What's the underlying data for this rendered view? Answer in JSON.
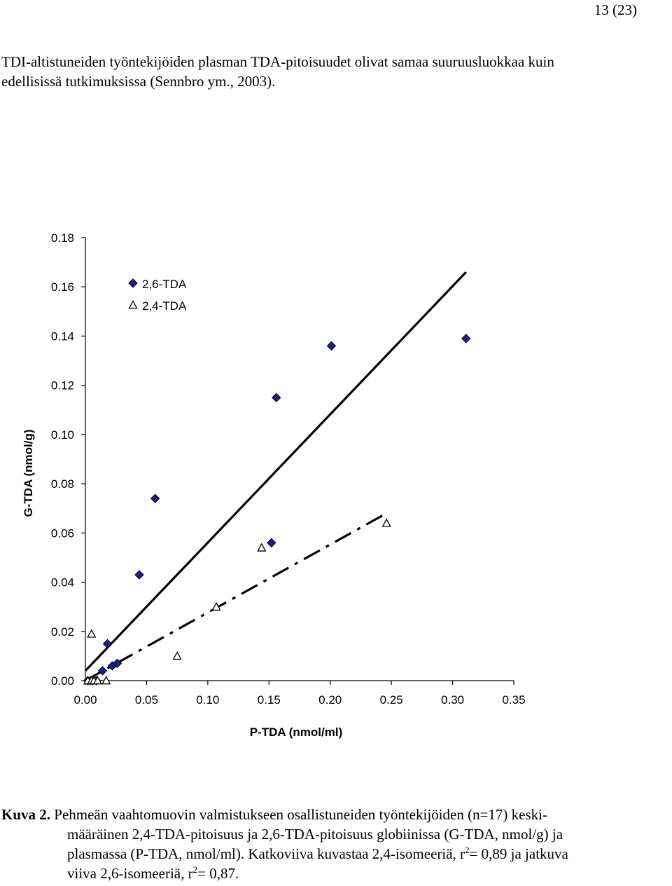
{
  "page": {
    "number": "13 (23)"
  },
  "intro": {
    "line1": "TDI-altistuneiden työntekijöiden plasman TDA-pitoisuudet olivat samaa suuruusluokkaa kuin",
    "line2": "edellisissä tutkimuksissa (Sennbro ym., 2003)."
  },
  "caption": {
    "label": "Kuva 2.",
    "line1": " Pehmeän vaahtomuovin valmistukseen osallistuneiden työntekijöiden (n=17) keski-",
    "line2": "määräinen 2,4-TDA-pitoisuus ja 2,6-TDA-pitoisuus globiinissa (G-TDA, nmol/g) ja",
    "line3a": "plasmassa (P-TDA, nmol/ml). Katkoviiva kuvastaa 2,4-isomeeriä, r",
    "sup1": "2",
    "line3b": "= 0,89 ja jatkuva",
    "line4a": "viiva 2,6-isomeeriä, r",
    "sup2": "2",
    "line4b": "= 0,87."
  },
  "chart_data": {
    "type": "scatter",
    "xlabel": "P-TDA (nmol/ml)",
    "ylabel": "G-TDA (nmol/g)",
    "xlim": [
      0,
      0.35
    ],
    "ylim": [
      0,
      0.18
    ],
    "x_ticks": [
      "0.00",
      "0.05",
      "0.10",
      "0.15",
      "0.20",
      "0.25",
      "0.30",
      "0.35"
    ],
    "y_ticks": [
      "0.00",
      "0.02",
      "0.04",
      "0.06",
      "0.08",
      "0.10",
      "0.12",
      "0.14",
      "0.16",
      "0.18"
    ],
    "grid": false,
    "legend_position": "top-left",
    "series": [
      {
        "name": "2,6-TDA",
        "marker": "diamond",
        "color": "#1f1f8c",
        "points": [
          [
            0.002,
            0.0
          ],
          [
            0.004,
            0.0
          ],
          [
            0.006,
            0.0
          ],
          [
            0.009,
            0.0
          ],
          [
            0.014,
            0.004
          ],
          [
            0.018,
            0.015
          ],
          [
            0.022,
            0.006
          ],
          [
            0.026,
            0.007
          ],
          [
            0.044,
            0.043
          ],
          [
            0.057,
            0.074
          ],
          [
            0.152,
            0.056
          ],
          [
            0.156,
            0.115
          ],
          [
            0.201,
            0.136
          ],
          [
            0.311,
            0.139
          ]
        ]
      },
      {
        "name": "2,4-TDA",
        "marker": "triangle",
        "color": "#ffffff",
        "points": [
          [
            0.002,
            0.0
          ],
          [
            0.005,
            0.0
          ],
          [
            0.007,
            0.0
          ],
          [
            0.01,
            0.0
          ],
          [
            0.017,
            0.0
          ],
          [
            0.005,
            0.019
          ],
          [
            0.075,
            0.01
          ],
          [
            0.107,
            0.03
          ],
          [
            0.144,
            0.054
          ],
          [
            0.246,
            0.064
          ]
        ]
      }
    ],
    "fit_lines": [
      {
        "series": "2,6-TDA",
        "style": "solid",
        "x": [
          0.0,
          0.311
        ],
        "y": [
          0.004,
          0.166
        ]
      },
      {
        "series": "2,4-TDA",
        "style": "dashdot",
        "x": [
          0.0,
          0.246
        ],
        "y": [
          0.0,
          0.068
        ]
      }
    ]
  }
}
